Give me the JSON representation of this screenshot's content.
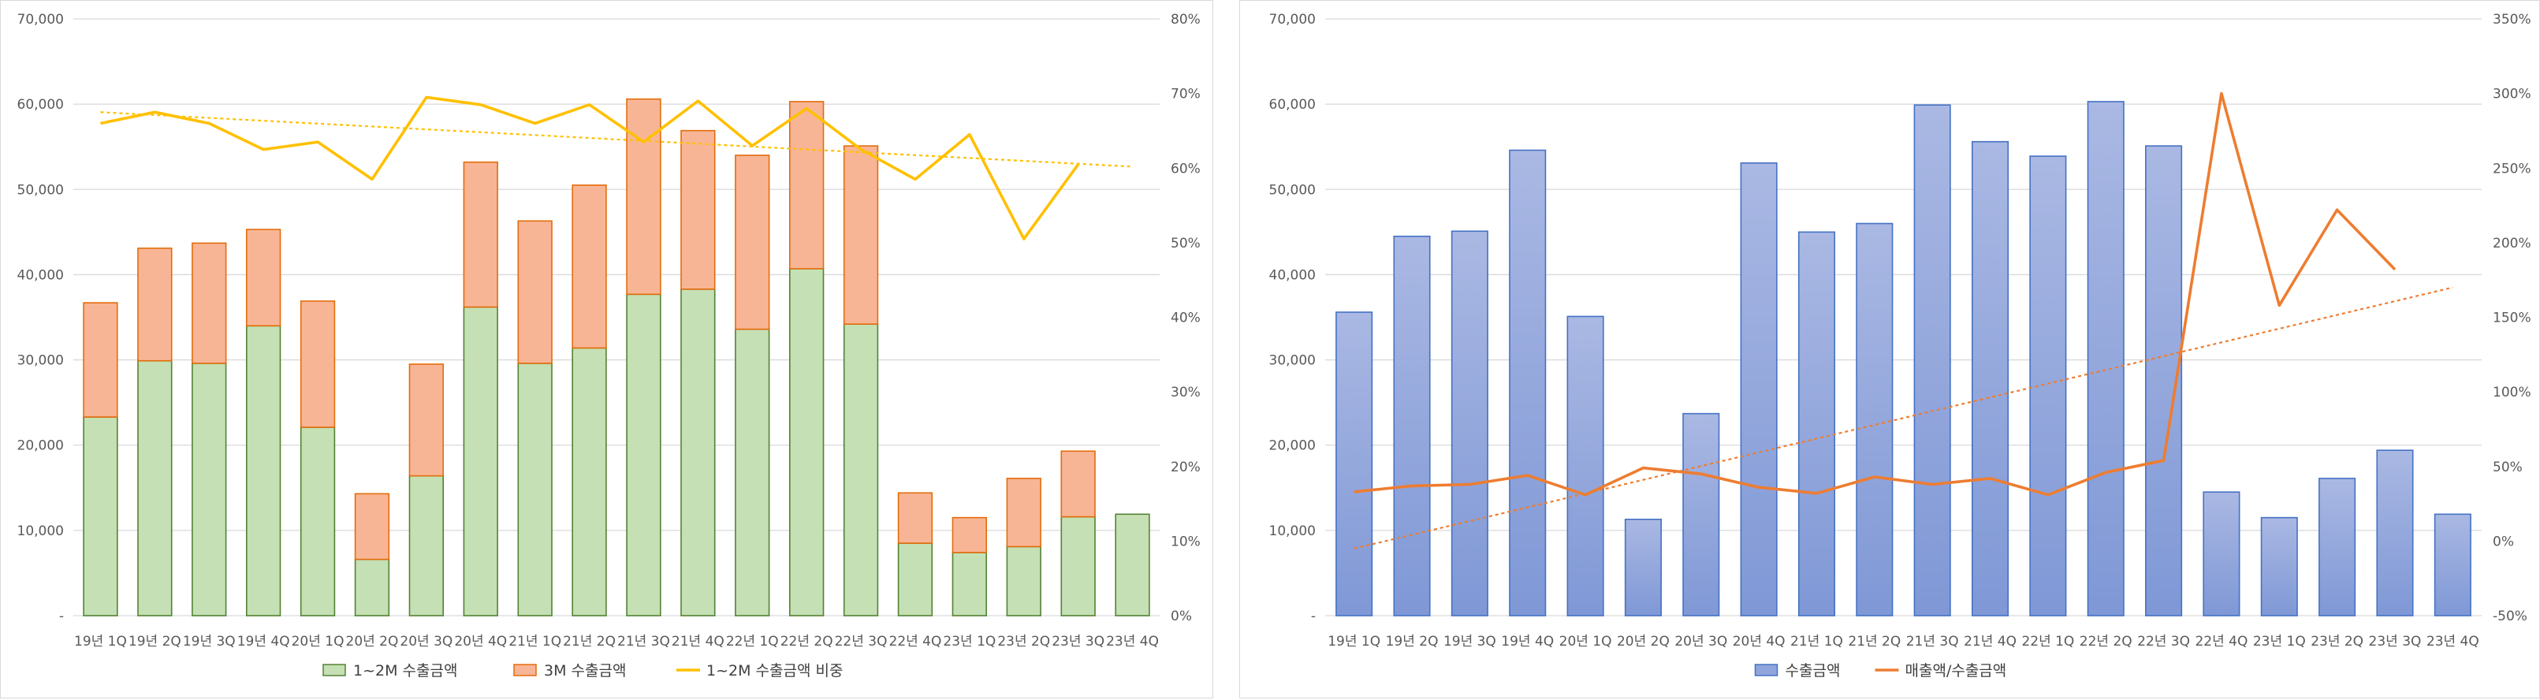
{
  "chart_data": [
    {
      "type": "bar",
      "stacked": true,
      "categories": [
        "19년 1Q",
        "19년 2Q",
        "19년 3Q",
        "19년 4Q",
        "20년 1Q",
        "20년 2Q",
        "20년 3Q",
        "20년 4Q",
        "21년 1Q",
        "21년 2Q",
        "21년 3Q",
        "21년 4Q",
        "22년 1Q",
        "22년 2Q",
        "22년 3Q",
        "22년 4Q",
        "23년 1Q",
        "23년 2Q",
        "23년 3Q",
        "23년 4Q"
      ],
      "series": [
        {
          "name": "1~2M 수출금액",
          "type": "bar",
          "axis": "left",
          "color": "#c5e0b4",
          "stroke": "#548235",
          "values": [
            23300,
            29900,
            29600,
            34000,
            22100,
            6600,
            16400,
            36200,
            29600,
            31400,
            37700,
            38300,
            33600,
            40700,
            34200,
            8500,
            7400,
            8100,
            11600,
            11900
          ]
        },
        {
          "name": "3M 수출금액",
          "type": "bar",
          "axis": "left",
          "color": "#f8b596",
          "stroke": "#e46c0a",
          "values": [
            13400,
            13200,
            14100,
            11300,
            14800,
            7700,
            13100,
            17000,
            16700,
            19100,
            22900,
            18600,
            20400,
            19600,
            20900,
            5900,
            4100,
            8000,
            7700,
            0
          ]
        },
        {
          "name": "1~2M 수출금액 비중",
          "type": "line",
          "axis": "right",
          "color": "#ffc000",
          "values": [
            66,
            67.5,
            66,
            62.5,
            63.5,
            58.5,
            69.5,
            68.5,
            66,
            68.5,
            63.5,
            69,
            63,
            68,
            62.5,
            58.5,
            64.5,
            50.5,
            60.5,
            null
          ],
          "trendline": {
            "start": 67.5,
            "end": 60.2
          }
        }
      ],
      "yleft": {
        "ticks": [
          "-",
          "10,000",
          "20,000",
          "30,000",
          "40,000",
          "50,000",
          "60,000",
          "70,000"
        ],
        "ylim": [
          0,
          70000
        ]
      },
      "yright": {
        "ticks": [
          "0%",
          "10%",
          "20%",
          "30%",
          "40%",
          "50%",
          "60%",
          "70%",
          "80%"
        ],
        "ylim": [
          0,
          80
        ]
      },
      "legend": "bottom"
    },
    {
      "type": "bar",
      "categories": [
        "19년 1Q",
        "19년 2Q",
        "19년 3Q",
        "19년 4Q",
        "20년 1Q",
        "20년 2Q",
        "20년 3Q",
        "20년 4Q",
        "21년 1Q",
        "21년 2Q",
        "21년 3Q",
        "21년 4Q",
        "22년 1Q",
        "22년 2Q",
        "22년 3Q",
        "22년 4Q",
        "23년 1Q",
        "23년 2Q",
        "23년 3Q",
        "23년 4Q"
      ],
      "series": [
        {
          "name": "수출금액",
          "type": "bar",
          "axis": "left",
          "color": "#8fa5db",
          "stroke": "#4472c4",
          "values": [
            35600,
            44500,
            45100,
            54600,
            35100,
            11300,
            23700,
            53100,
            45000,
            46000,
            59900,
            55600,
            53900,
            60300,
            55100,
            14500,
            11500,
            16100,
            19400,
            11900
          ]
        },
        {
          "name": "매출액/수출금액",
          "type": "line",
          "axis": "right",
          "color": "#ed7d31",
          "values": [
            33,
            37,
            38,
            44,
            31,
            49,
            45,
            36,
            32,
            43,
            38,
            42,
            31,
            46,
            54,
            300,
            158,
            222,
            182,
            null
          ],
          "trendline": {
            "start": -5,
            "end": 170
          }
        }
      ],
      "yleft": {
        "ticks": [
          "-",
          "10,000",
          "20,000",
          "30,000",
          "40,000",
          "50,000",
          "60,000",
          "70,000"
        ],
        "ylim": [
          0,
          70000
        ]
      },
      "yright": {
        "ticks": [
          "-50%",
          "0%",
          "50%",
          "100%",
          "150%",
          "200%",
          "250%",
          "300%",
          "350%"
        ],
        "ylim": [
          -50,
          350
        ]
      },
      "legend": "bottom"
    }
  ]
}
